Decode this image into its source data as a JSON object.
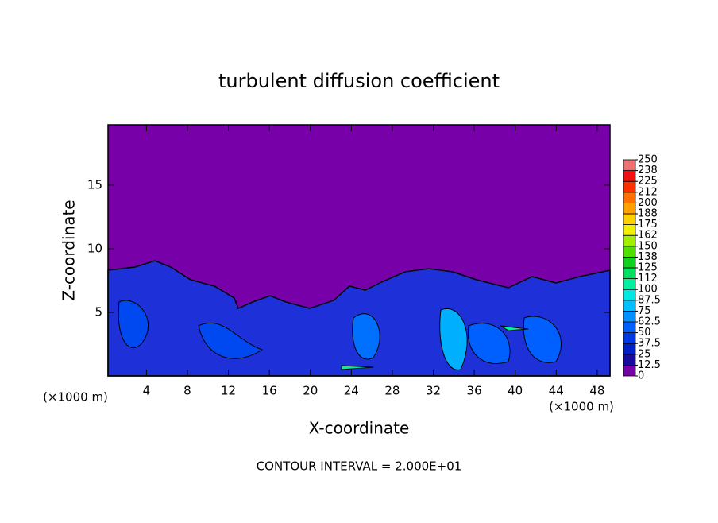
{
  "chart_data": {
    "type": "contour",
    "title": "turbulent diffusion coefficient",
    "x_label": "X-coordinate",
    "y_label": "Z-coordinate",
    "x_unit": "(×1000 m)",
    "x_unit_right": "(×1000 m)",
    "footnote": "CONTOUR INTERVAL = 2.000E+01",
    "xlim": [
      0.25,
      49.25
    ],
    "ylim": [
      0,
      19.75
    ],
    "xticks": [
      4,
      8,
      12,
      16,
      20,
      24,
      28,
      32,
      36,
      40,
      44,
      48
    ],
    "yticks": [
      5,
      10,
      15
    ],
    "colorbar_ticks": [
      0,
      12.5,
      25,
      37.5,
      50,
      62.5,
      75,
      87.5,
      100,
      {
        "value": 112.5,
        "label": "112"
      },
      125,
      {
        "value": 137.5,
        "label": "138"
      },
      150,
      {
        "value": 162.5,
        "label": "162"
      },
      175,
      {
        "value": 187.5,
        "label": "188"
      },
      200,
      {
        "value": 212.5,
        "label": "212"
      },
      225,
      {
        "value": 237.5,
        "label": "238"
      },
      250
    ],
    "colorbar_colors": [
      "#7800a8",
      "#1a0aa0",
      "#0020c8",
      "#0038e8",
      "#0060ff",
      "#0090ff",
      "#00c0ff",
      "#00e8e0",
      "#00f0a0",
      "#00e060",
      "#10d020",
      "#50e000",
      "#a0f000",
      "#f0f000",
      "#ffd000",
      "#ffa000",
      "#ff7000",
      "#ff3000",
      "#f01010",
      "#f07070"
    ]
  }
}
